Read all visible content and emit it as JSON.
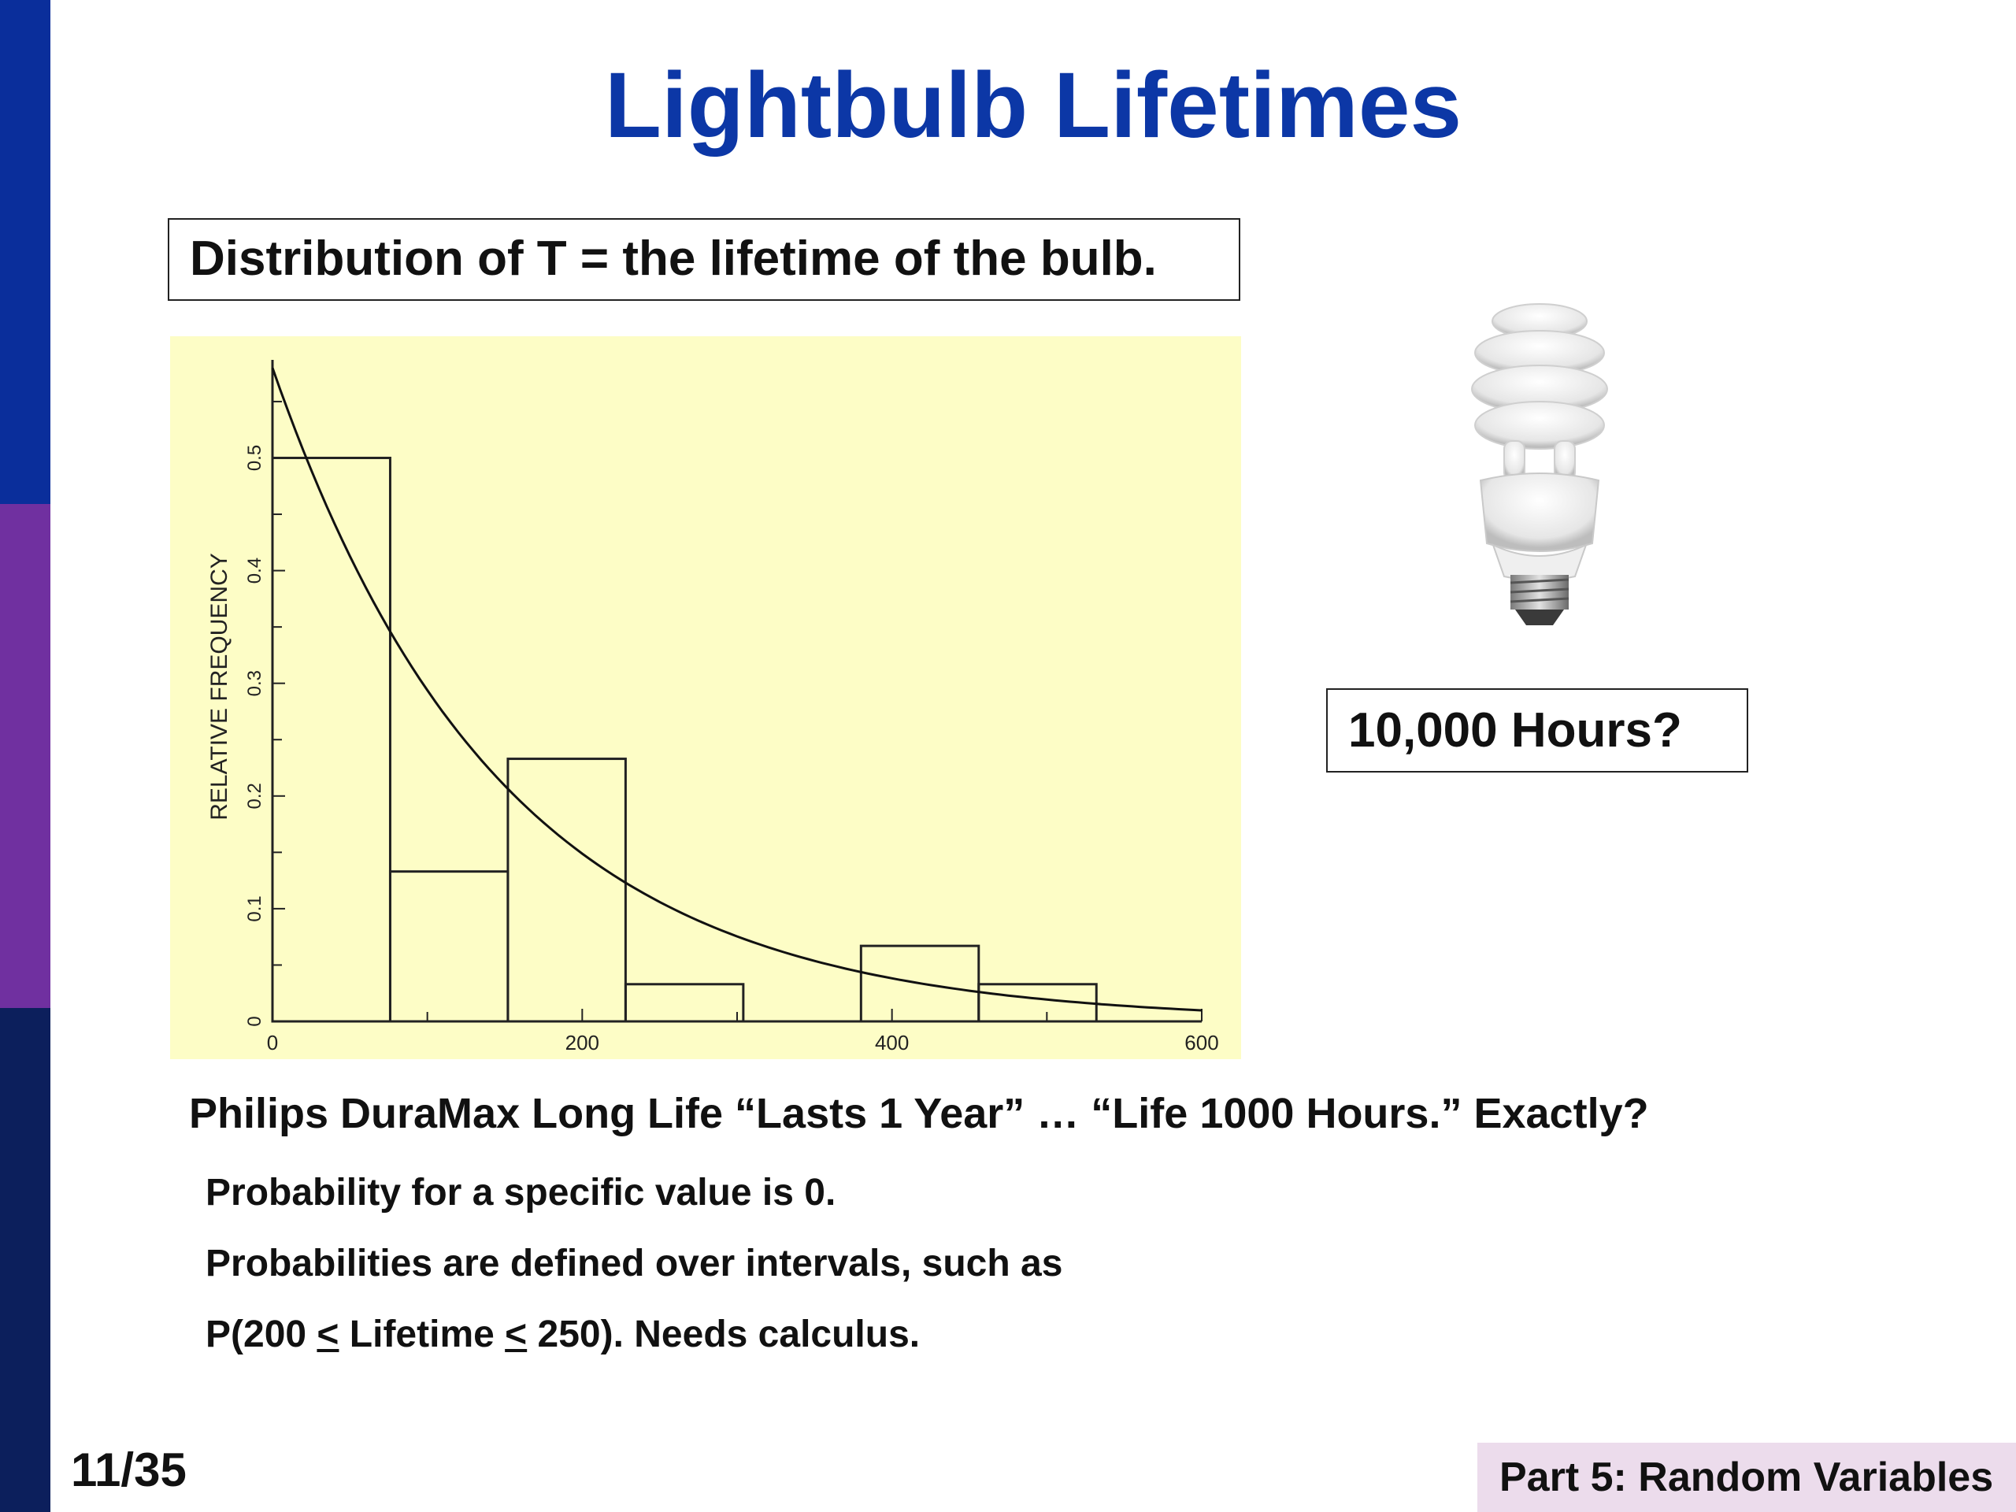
{
  "colors": {
    "sidebar_top": "#0a2e9b",
    "sidebar_mid": "#7030a0",
    "sidebar_bottom": "#0c1f5c",
    "title": "#0c37a6",
    "chart_background": "#fdfdc6",
    "footer_background": "#ecdcec"
  },
  "slide": {
    "title": "Lightbulb Lifetimes",
    "distribution_label": "Distribution of T = the lifetime of the bulb.",
    "hours_label": "10,000 Hours?",
    "line1": "Philips DuraMax Long Life “Lasts 1 Year”  …  “Life 1000 Hours.”   Exactly?",
    "line2": "Probability for a specific value is 0.",
    "line3": "Probabilities are defined over intervals, such as",
    "line4": {
      "prefix": "P(200 ",
      "le1": "<",
      "middle": " Lifetime ",
      "le2": "<",
      "suffix": " 250).  Needs calculus."
    },
    "page_number": "11/35",
    "footer": "Part 5: Random Variables"
  },
  "chart_data": {
    "type": "bar",
    "title": "",
    "xlabel": "",
    "ylabel": "RELATIVE FREQUENCY",
    "xlim": [
      0,
      600
    ],
    "ylim": [
      0,
      0.58
    ],
    "x_ticks": [
      "0",
      "200",
      "400",
      "600"
    ],
    "y_ticks": [
      "0",
      "0.1",
      "0.2",
      "0.3",
      "0.4",
      "0.5"
    ],
    "bins": [
      {
        "start": 0,
        "end": 76,
        "value": 0.5
      },
      {
        "start": 76,
        "end": 152,
        "value": 0.133
      },
      {
        "start": 152,
        "end": 228,
        "value": 0.233
      },
      {
        "start": 228,
        "end": 304,
        "value": 0.033
      },
      {
        "start": 304,
        "end": 380,
        "value": 0.0
      },
      {
        "start": 380,
        "end": 456,
        "value": 0.067
      },
      {
        "start": 456,
        "end": 532,
        "value": 0.033
      }
    ],
    "density_curve": {
      "type": "exponential",
      "initial_value": 0.58,
      "rate_per_hour": 0.0068,
      "x_range": [
        0,
        600
      ]
    }
  }
}
